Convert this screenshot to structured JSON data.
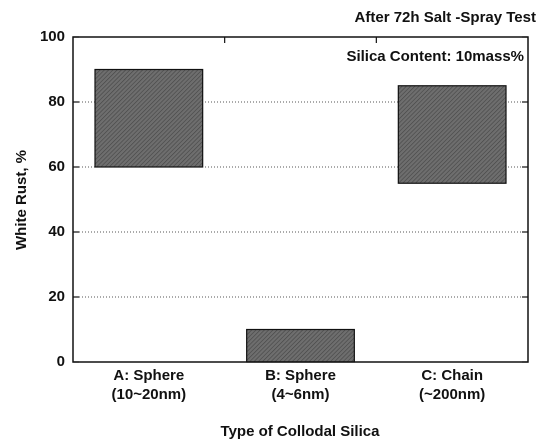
{
  "chart_data": {
    "type": "floating-bar",
    "annotations": [
      "After 72h Salt -Spray Test",
      "Silica Content: 10mass%"
    ],
    "xlabel": "Type of Collodal Silica",
    "ylabel": "White Rust, %",
    "categories": [
      [
        "A: Sphere",
        "(10~20nm)"
      ],
      [
        "B: Sphere",
        "(4~6nm)"
      ],
      [
        "C: Chain",
        "(~200nm)"
      ]
    ],
    "low": [
      60,
      0,
      55
    ],
    "high": [
      90,
      10,
      85
    ],
    "color": "#6e6e6e",
    "ylim": [
      0,
      100
    ],
    "yticks": [
      0,
      20,
      40,
      60,
      80,
      100
    ],
    "grid": true
  }
}
